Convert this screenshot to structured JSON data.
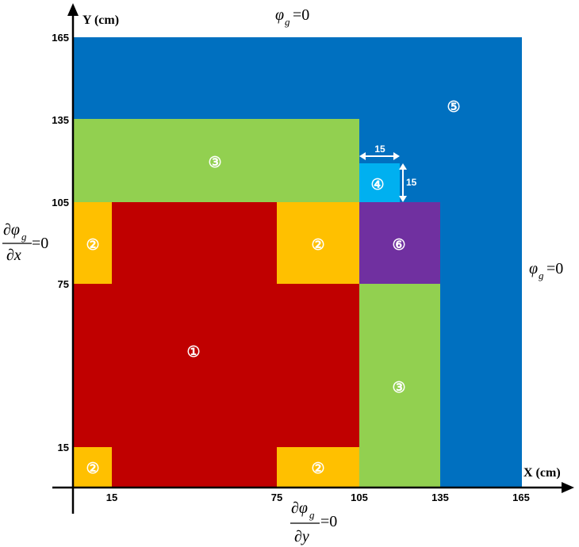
{
  "axes": {
    "x_title": "X (cm)",
    "y_title": "Y (cm)",
    "x_ticks": [
      "15",
      "75",
      "105",
      "135",
      "165"
    ],
    "y_ticks": [
      "15",
      "75",
      "105",
      "135",
      "165"
    ]
  },
  "zones": {
    "labels": [
      "①",
      "②",
      "③",
      "④",
      "⑤",
      "⑥"
    ],
    "colors": {
      "zone1": "#c00000",
      "zone2": "#ffc000",
      "zone3": "#92d050",
      "zone4": "#00b0f0",
      "zone5": "#0070c0",
      "zone6": "#7030a0"
    }
  },
  "dimensions": {
    "zone4_width": "15",
    "zone4_height": "15"
  },
  "boundary_conditions": {
    "top": {
      "var": "φ",
      "sub": "g",
      "eq": "=0"
    },
    "right": {
      "var": "φ",
      "sub": "g",
      "eq": "=0"
    },
    "left": {
      "num": "∂φ",
      "sub": "g",
      "den": "∂x",
      "eq": "=0"
    },
    "bottom": {
      "num": "∂φ",
      "sub": "g",
      "den": "∂y",
      "eq": "=0"
    }
  }
}
